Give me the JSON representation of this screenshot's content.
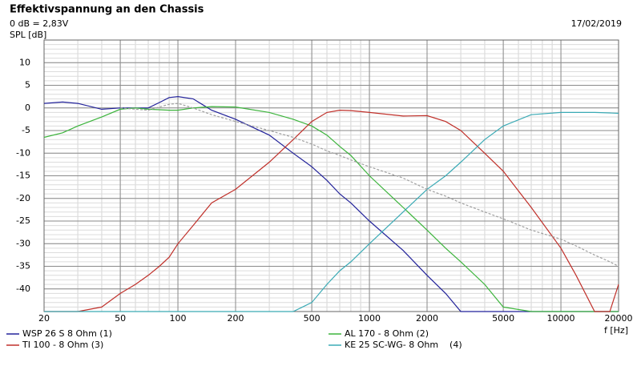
{
  "chart_data": {
    "type": "line",
    "title": "Effektivspannung an den Chassis",
    "subtitle": "0 dB = 2,83V",
    "date": "17/02/2019",
    "y_label": "SPL [dB]",
    "x_label": "f [Hz]",
    "xscale": "log",
    "grid": true,
    "x": [
      20,
      25,
      30,
      40,
      50,
      60,
      70,
      80,
      90,
      100,
      120,
      150,
      200,
      300,
      400,
      500,
      600,
      700,
      800,
      1000,
      1500,
      2000,
      2500,
      3000,
      4000,
      5000,
      7000,
      10000,
      12000,
      15000,
      18000,
      20000
    ],
    "xlim": [
      20,
      20000
    ],
    "xticks": [
      20,
      50,
      100,
      200,
      500,
      1000,
      2000,
      5000,
      10000,
      20000
    ],
    "ylim": [
      -45,
      15
    ],
    "yticks": [
      10,
      5,
      0,
      -5,
      -10,
      -15,
      -20,
      -25,
      -30,
      -35,
      -40
    ],
    "series": [
      {
        "name": "WSP 26 S 8 Ohm (1)",
        "color": "#22229a",
        "values": [
          1,
          1.3,
          1,
          -0.3,
          0,
          0,
          0,
          1.2,
          2.3,
          2.5,
          2,
          -0.5,
          -2.5,
          -6,
          -10,
          -13,
          -16,
          -19,
          -21,
          -25,
          -31.5,
          -37,
          -41,
          -45,
          -45,
          -45,
          -45,
          -45,
          -45,
          -45,
          -45,
          -45
        ]
      },
      {
        "name": "AL 170 - 8 Ohm (2)",
        "color": "#3cb43c",
        "values": [
          -6.5,
          -5.5,
          -4,
          -2,
          -0.3,
          0,
          -0.3,
          -0.4,
          -0.5,
          -0.5,
          0,
          0.3,
          0.2,
          -1,
          -2.5,
          -4,
          -6,
          -8.5,
          -10.5,
          -15,
          -22,
          -27,
          -31,
          -34,
          -39,
          -44,
          -45,
          -45,
          -45,
          -45,
          -45,
          -45
        ]
      },
      {
        "name": "TI 100 - 8 Ohm (3)",
        "color": "#c0302a",
        "values": [
          -45,
          -45,
          -45,
          -44,
          -41,
          -39,
          -37,
          -35,
          -33,
          -30,
          -26,
          -21,
          -18,
          -12,
          -7,
          -3,
          -1,
          -0.5,
          -0.6,
          -1,
          -1.8,
          -1.7,
          -3,
          -5,
          -10,
          -14,
          -22,
          -31,
          -37,
          -45,
          -45,
          -39
        ]
      },
      {
        "name": "KE 25 SC-WG- 8 Ohm    (4)",
        "color": "#3aaab5",
        "values": [
          -45,
          -45,
          -45,
          -45,
          -45,
          -45,
          -45,
          -45,
          -45,
          -45,
          -45,
          -45,
          -45,
          -45,
          -45,
          -43,
          -39,
          -36,
          -34,
          -30,
          -23,
          -18,
          -15,
          -12,
          -7,
          -4,
          -1.5,
          -1,
          -1,
          -1,
          -1.1,
          -1.2
        ]
      },
      {
        "color": "#a0a0a0",
        "dashed": true,
        "values": [
          null,
          null,
          null,
          null,
          0,
          -0.3,
          -0.5,
          0.2,
          0.8,
          1,
          0,
          -1.5,
          -3,
          -5,
          -6.5,
          -8,
          -9.5,
          -10.5,
          -11.5,
          -13,
          -15.5,
          -18,
          -19.5,
          -21,
          -23,
          -24.5,
          -27,
          -29,
          -30.5,
          -32.5,
          -34,
          -35
        ]
      }
    ]
  }
}
